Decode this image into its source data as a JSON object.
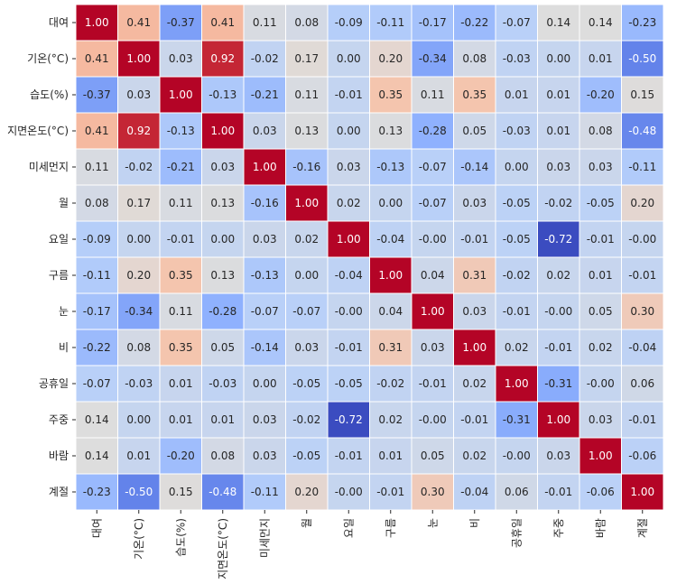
{
  "chart_data": {
    "type": "heatmap",
    "title": "",
    "xlabel": "",
    "ylabel": "",
    "colormap": "coolwarm",
    "vmin": -0.72,
    "vmax": 1.0,
    "cell_border_color": "#ffffff",
    "labels": [
      "대여",
      "기온(°C)",
      "습도(%)",
      "지면온도(°C)",
      "미세먼지",
      "월",
      "요일",
      "구름",
      "눈",
      "비",
      "공휴일",
      "주중",
      "바람",
      "계절"
    ],
    "matrix": [
      [
        1.0,
        0.41,
        -0.37,
        0.41,
        0.11,
        0.08,
        -0.09,
        -0.11,
        -0.17,
        -0.22,
        -0.07,
        0.14,
        0.14,
        -0.23
      ],
      [
        0.41,
        1.0,
        0.03,
        0.92,
        -0.02,
        0.17,
        0.0,
        0.2,
        -0.34,
        0.08,
        -0.03,
        0.0,
        0.01,
        -0.5
      ],
      [
        -0.37,
        0.03,
        1.0,
        -0.13,
        -0.21,
        0.11,
        -0.01,
        0.35,
        0.11,
        0.35,
        0.01,
        0.01,
        -0.2,
        0.15
      ],
      [
        0.41,
        0.92,
        -0.13,
        1.0,
        0.03,
        0.13,
        0.0,
        0.13,
        -0.28,
        0.05,
        -0.03,
        0.01,
        0.08,
        -0.48
      ],
      [
        0.11,
        -0.02,
        -0.21,
        0.03,
        1.0,
        -0.16,
        0.03,
        -0.13,
        -0.07,
        -0.14,
        0.0,
        0.03,
        0.03,
        -0.11
      ],
      [
        0.08,
        0.17,
        0.11,
        0.13,
        -0.16,
        1.0,
        0.02,
        0.0,
        -0.07,
        0.03,
        -0.05,
        -0.02,
        -0.05,
        0.2
      ],
      [
        -0.09,
        0.0,
        -0.01,
        0.0,
        0.03,
        0.02,
        1.0,
        -0.04,
        -0.0,
        -0.01,
        -0.05,
        -0.72,
        -0.01,
        -0.0
      ],
      [
        -0.11,
        0.2,
        0.35,
        0.13,
        -0.13,
        0.0,
        -0.04,
        1.0,
        0.04,
        0.31,
        -0.02,
        0.02,
        0.01,
        -0.01
      ],
      [
        -0.17,
        -0.34,
        0.11,
        -0.28,
        -0.07,
        -0.07,
        -0.0,
        0.04,
        1.0,
        0.03,
        -0.01,
        -0.0,
        0.05,
        0.3
      ],
      [
        -0.22,
        0.08,
        0.35,
        0.05,
        -0.14,
        0.03,
        -0.01,
        0.31,
        0.03,
        1.0,
        0.02,
        -0.01,
        0.02,
        -0.04
      ],
      [
        -0.07,
        -0.03,
        0.01,
        -0.03,
        0.0,
        -0.05,
        -0.05,
        -0.02,
        -0.01,
        0.02,
        1.0,
        -0.31,
        -0.0,
        0.06
      ],
      [
        0.14,
        0.0,
        0.01,
        0.01,
        0.03,
        -0.02,
        -0.72,
        0.02,
        -0.0,
        -0.01,
        -0.31,
        1.0,
        0.03,
        -0.01
      ],
      [
        0.14,
        0.01,
        -0.2,
        0.08,
        0.03,
        -0.05,
        -0.01,
        0.01,
        0.05,
        0.02,
        -0.0,
        0.03,
        1.0,
        -0.06
      ],
      [
        -0.23,
        -0.5,
        0.15,
        -0.48,
        -0.11,
        0.2,
        -0.0,
        -0.01,
        0.3,
        -0.04,
        0.06,
        -0.01,
        -0.06,
        1.0
      ]
    ],
    "annotations": [
      [
        "1.00",
        "0.41",
        "-0.37",
        "0.41",
        "0.11",
        "0.08",
        "-0.09",
        "-0.11",
        "-0.17",
        "-0.22",
        "-0.07",
        "0.14",
        "0.14",
        "-0.23"
      ],
      [
        "0.41",
        "1.00",
        "0.03",
        "0.92",
        "-0.02",
        "0.17",
        "0.00",
        "0.20",
        "-0.34",
        "0.08",
        "-0.03",
        "0.00",
        "0.01",
        "-0.50"
      ],
      [
        "-0.37",
        "0.03",
        "1.00",
        "-0.13",
        "-0.21",
        "0.11",
        "-0.01",
        "0.35",
        "0.11",
        "0.35",
        "0.01",
        "0.01",
        "-0.20",
        "0.15"
      ],
      [
        "0.41",
        "0.92",
        "-0.13",
        "1.00",
        "0.03",
        "0.13",
        "0.00",
        "0.13",
        "-0.28",
        "0.05",
        "-0.03",
        "0.01",
        "0.08",
        "-0.48"
      ],
      [
        "0.11",
        "-0.02",
        "-0.21",
        "0.03",
        "1.00",
        "-0.16",
        "0.03",
        "-0.13",
        "-0.07",
        "-0.14",
        "0.00",
        "0.03",
        "0.03",
        "-0.11"
      ],
      [
        "0.08",
        "0.17",
        "0.11",
        "0.13",
        "-0.16",
        "1.00",
        "0.02",
        "0.00",
        "-0.07",
        "0.03",
        "-0.05",
        "-0.02",
        "-0.05",
        "0.20"
      ],
      [
        "-0.09",
        "0.00",
        "-0.01",
        "0.00",
        "0.03",
        "0.02",
        "1.00",
        "-0.04",
        "-0.00",
        "-0.01",
        "-0.05",
        "-0.72",
        "-0.01",
        "-0.00"
      ],
      [
        "-0.11",
        "0.20",
        "0.35",
        "0.13",
        "-0.13",
        "0.00",
        "-0.04",
        "1.00",
        "0.04",
        "0.31",
        "-0.02",
        "0.02",
        "0.01",
        "-0.01"
      ],
      [
        "-0.17",
        "-0.34",
        "0.11",
        "-0.28",
        "-0.07",
        "-0.07",
        "-0.00",
        "0.04",
        "1.00",
        "0.03",
        "-0.01",
        "-0.00",
        "0.05",
        "0.30"
      ],
      [
        "-0.22",
        "0.08",
        "0.35",
        "0.05",
        "-0.14",
        "0.03",
        "-0.01",
        "0.31",
        "0.03",
        "1.00",
        "0.02",
        "-0.01",
        "0.02",
        "-0.04"
      ],
      [
        "-0.07",
        "-0.03",
        "0.01",
        "-0.03",
        "0.00",
        "-0.05",
        "-0.05",
        "-0.02",
        "-0.01",
        "0.02",
        "1.00",
        "-0.31",
        "-0.00",
        "0.06"
      ],
      [
        "0.14",
        "0.00",
        "0.01",
        "0.01",
        "0.03",
        "-0.02",
        "-0.72",
        "0.02",
        "-0.00",
        "-0.01",
        "-0.31",
        "1.00",
        "0.03",
        "-0.01"
      ],
      [
        "0.14",
        "0.01",
        "-0.20",
        "0.08",
        "0.03",
        "-0.05",
        "-0.01",
        "0.01",
        "0.05",
        "0.02",
        "-0.00",
        "0.03",
        "1.00",
        "-0.06"
      ],
      [
        "-0.23",
        "-0.50",
        "0.15",
        "-0.48",
        "-0.11",
        "0.20",
        "-0.00",
        "-0.01",
        "0.30",
        "-0.04",
        "0.06",
        "-0.01",
        "-0.06",
        "1.00"
      ]
    ]
  }
}
